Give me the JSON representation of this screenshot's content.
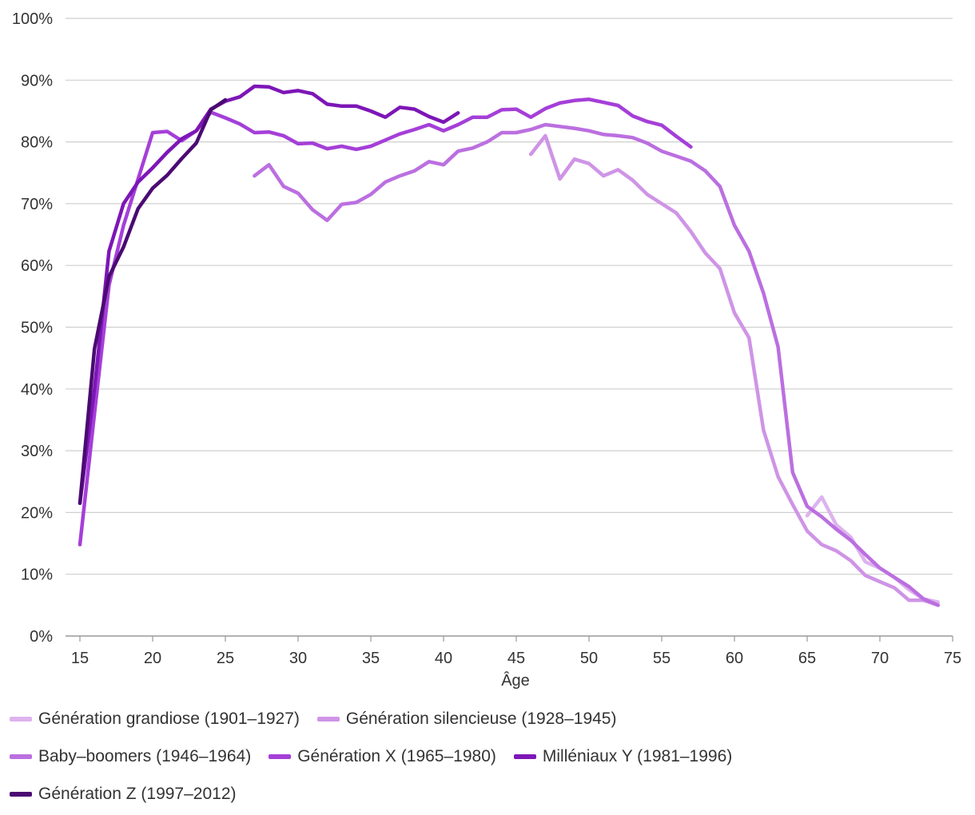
{
  "chart_data": {
    "type": "line",
    "title": "",
    "xlabel": "Âge",
    "ylabel": "",
    "xlim": [
      15,
      75
    ],
    "ylim": [
      0,
      100
    ],
    "xticks": [
      15,
      20,
      25,
      30,
      35,
      40,
      45,
      50,
      55,
      60,
      65,
      70,
      75
    ],
    "yticks": [
      "0%",
      "10%",
      "20%",
      "30%",
      "40%",
      "50%",
      "60%",
      "70%",
      "80%",
      "90%",
      "100%"
    ],
    "yticks_values": [
      0,
      10,
      20,
      30,
      40,
      50,
      60,
      70,
      80,
      90,
      100
    ],
    "grid": "horizontal",
    "legend_position": "bottom",
    "series": [
      {
        "name": "Génération grandiose (1901–1927)",
        "color": "#ddb3ee",
        "x": [
          65,
          66,
          67,
          68,
          69,
          70,
          71,
          72,
          73,
          74
        ],
        "y": [
          19.5,
          22.5,
          18,
          16,
          12,
          11,
          9.5,
          7.5,
          6,
          5.5
        ]
      },
      {
        "name": "Génération silencieuse (1928–1945)",
        "color": "#cf94e6",
        "x": [
          46,
          47,
          48,
          49,
          50,
          51,
          52,
          53,
          54,
          55,
          56,
          57,
          58,
          59,
          60,
          61,
          62,
          63,
          64,
          65,
          66,
          67,
          68,
          69,
          70,
          71,
          72,
          73,
          74
        ],
        "y": [
          78,
          81,
          74,
          77.2,
          76.5,
          74.5,
          75.5,
          73.8,
          71.5,
          70,
          68.5,
          65.5,
          62,
          59.5,
          52.3,
          48.3,
          33.3,
          25.8,
          21.3,
          17,
          14.8,
          13.8,
          12.2,
          9.8,
          8.8,
          7.8,
          5.8,
          5.8,
          5
        ]
      },
      {
        "name": "Baby–boomers (1946–1964)",
        "color": "#bb6fe0",
        "x": [
          27,
          28,
          29,
          30,
          31,
          32,
          33,
          34,
          35,
          36,
          37,
          38,
          39,
          40,
          41,
          42,
          43,
          44,
          45,
          46,
          47,
          48,
          49,
          50,
          51,
          52,
          53,
          54,
          55,
          56,
          57,
          58,
          59,
          60,
          61,
          62,
          63,
          64,
          65,
          66,
          67,
          68,
          69,
          70,
          71,
          72,
          73,
          74
        ],
        "y": [
          74.5,
          76.3,
          72.8,
          71.7,
          69,
          67.3,
          69.9,
          70.2,
          71.5,
          73.5,
          74.5,
          75.3,
          76.8,
          76.3,
          78.5,
          79,
          80,
          81.5,
          81.5,
          82,
          82.8,
          82.5,
          82.2,
          81.8,
          81.2,
          81,
          80.7,
          79.8,
          78.5,
          77.7,
          76.9,
          75.3,
          72.8,
          66.5,
          62.3,
          55.5,
          46.8,
          26.5,
          21,
          19.3,
          17.3,
          15.5,
          13.2,
          11,
          9.5,
          8,
          6,
          5
        ]
      },
      {
        "name": "Génération X (1965–1980)",
        "color": "#a53fd8",
        "x": [
          15,
          16,
          17,
          18,
          19,
          20,
          21,
          22,
          23,
          24,
          25,
          26,
          27,
          28,
          29,
          30,
          31,
          32,
          33,
          34,
          35,
          36,
          37,
          38,
          39,
          40,
          41,
          42,
          43,
          44,
          45,
          46,
          47,
          48,
          49,
          50,
          51,
          52,
          53,
          54,
          55,
          56,
          57
        ],
        "y": [
          14.8,
          36,
          56.8,
          66.5,
          74,
          81.5,
          81.7,
          80.2,
          81.8,
          84.8,
          83.9,
          82.9,
          81.5,
          81.6,
          81,
          79.7,
          79.8,
          78.9,
          79.3,
          78.8,
          79.3,
          80.3,
          81.3,
          82,
          82.8,
          81.8,
          82.8,
          84,
          84,
          85.2,
          85.3,
          84,
          85.4,
          86.3,
          86.7,
          86.9,
          86.4,
          85.9,
          84.2,
          83.3,
          82.7,
          80.9,
          79.2
        ]
      },
      {
        "name": "Milléniaux Y (1981–1996)",
        "color": "#7d16b6",
        "x": [
          15,
          16,
          17,
          18,
          19,
          20,
          21,
          22,
          23,
          24,
          25,
          26,
          27,
          28,
          29,
          30,
          31,
          32,
          33,
          34,
          35,
          36,
          37,
          38,
          39,
          40,
          41
        ],
        "y": [
          21.5,
          40,
          62.3,
          70,
          73.5,
          75.8,
          78.3,
          80.5,
          81.8,
          85.3,
          86.6,
          87.3,
          89,
          88.9,
          88,
          88.3,
          87.8,
          86.1,
          85.8,
          85.8,
          85,
          84,
          85.6,
          85.3,
          84.1,
          83.2,
          84.7
        ]
      },
      {
        "name": "Génération Z (1997–2012)",
        "color": "#4b0a72",
        "x": [
          15,
          16,
          17,
          18,
          19,
          20,
          21,
          22,
          23,
          24,
          25
        ],
        "y": [
          21.5,
          46.5,
          58.2,
          63,
          69.2,
          72.5,
          74.6,
          77.3,
          79.8,
          85.2,
          86.8
        ]
      }
    ]
  }
}
